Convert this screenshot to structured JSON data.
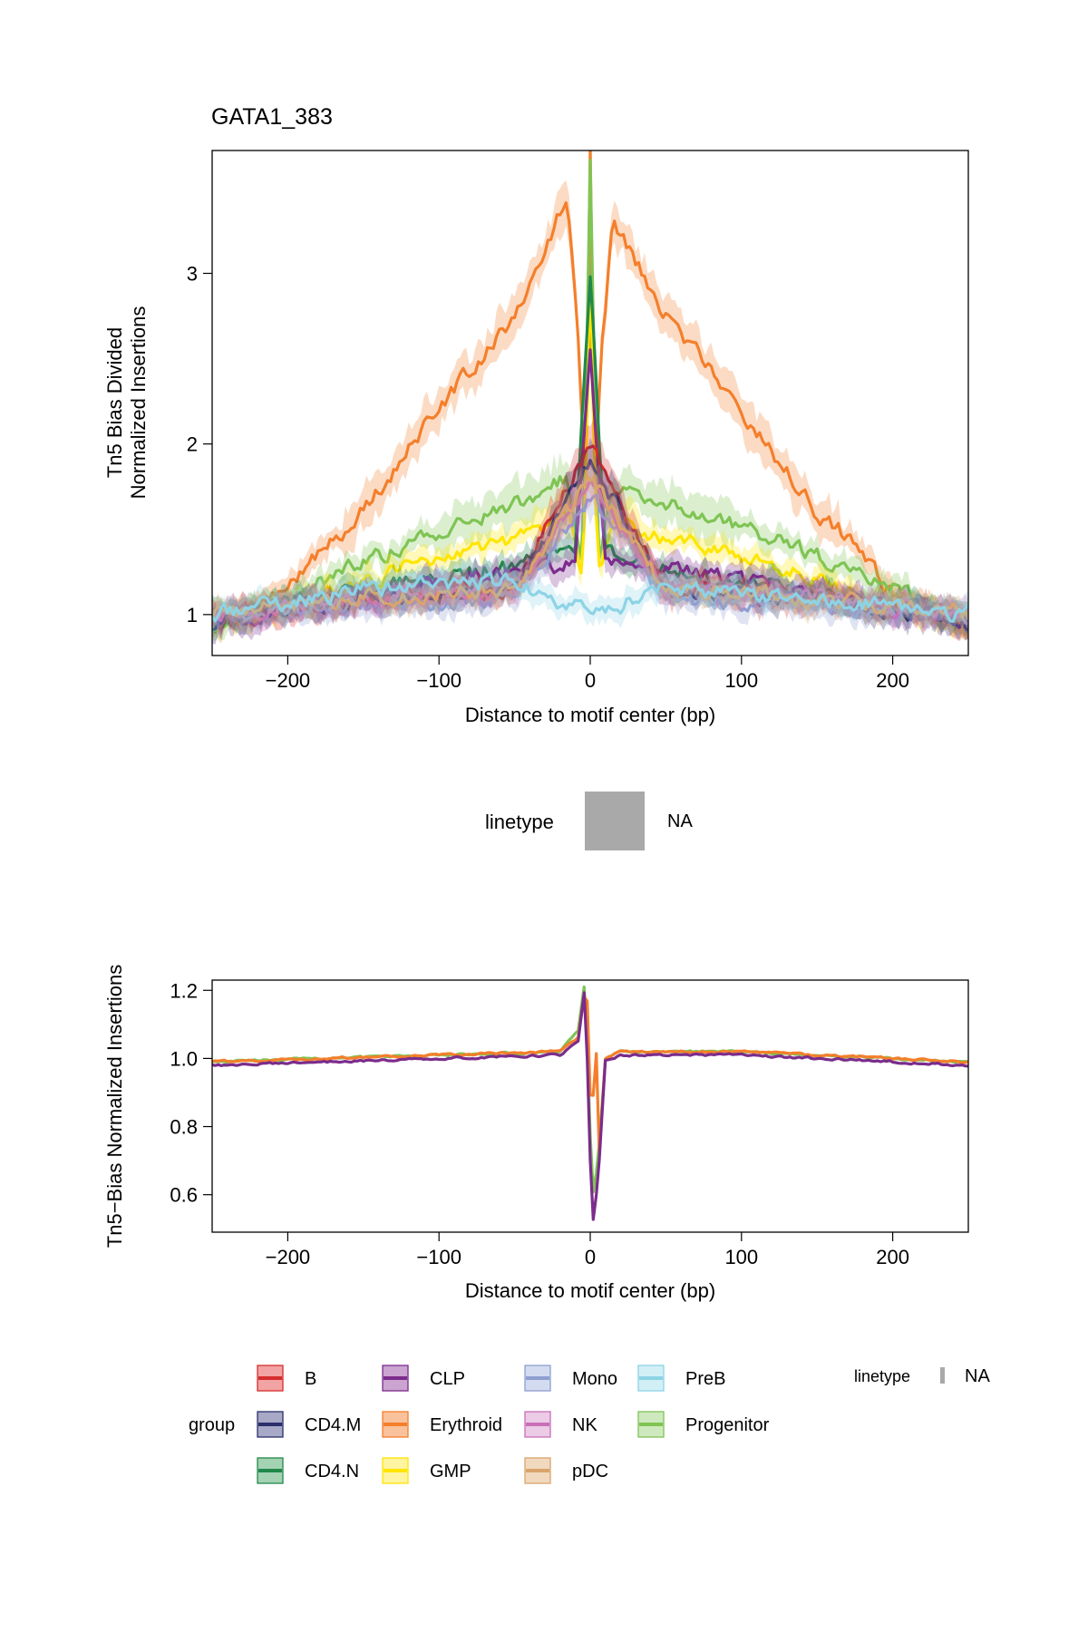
{
  "chart_data": [
    {
      "type": "line",
      "title": "GATA1_383",
      "xlabel": "Distance to motif center (bp)",
      "ylabel_line1": "Tn5 Bias Divided",
      "ylabel_line2": "Normalized Insertions",
      "xlim": [
        -250,
        250
      ],
      "ylim": [
        0.76,
        3.72
      ],
      "x_ticks": [
        -200,
        -100,
        0,
        100,
        200
      ],
      "x_tick_labels": [
        "−200",
        "−100",
        "0",
        "100",
        "200"
      ],
      "y_ticks": [
        1,
        2,
        3
      ],
      "y_tick_labels": [
        "1",
        "2",
        "3"
      ],
      "grid": false,
      "shaded_ribbons": true,
      "series": [
        {
          "name": "Erythroid",
          "color": "#f47f2b",
          "x": [
            -250,
            -200,
            -150,
            -100,
            -50,
            -15,
            -8,
            -3,
            0,
            3,
            8,
            15,
            50,
            100,
            150,
            165,
            200,
            250
          ],
          "y": [
            0.95,
            1.15,
            1.62,
            2.2,
            2.75,
            3.45,
            2.6,
            1.7,
            3.7,
            1.7,
            2.6,
            3.3,
            2.75,
            2.2,
            1.6,
            1.5,
            1.1,
            0.95
          ]
        },
        {
          "name": "Progenitor",
          "color": "#7fc454",
          "x": [
            -250,
            -200,
            -150,
            -100,
            -50,
            -15,
            -5,
            0,
            5,
            15,
            50,
            100,
            150,
            200,
            250
          ],
          "y": [
            0.9,
            1.1,
            1.3,
            1.5,
            1.65,
            1.8,
            1.3,
            3.7,
            1.3,
            1.75,
            1.65,
            1.5,
            1.35,
            1.15,
            0.95
          ]
        },
        {
          "name": "GMP",
          "color": "#ffe500",
          "x": [
            -250,
            -200,
            -150,
            -100,
            -50,
            -15,
            -5,
            0,
            5,
            15,
            50,
            100,
            150,
            200,
            250
          ],
          "y": [
            0.95,
            1.05,
            1.2,
            1.35,
            1.45,
            1.6,
            1.2,
            2.8,
            1.2,
            1.55,
            1.45,
            1.35,
            1.2,
            1.05,
            0.95
          ]
        },
        {
          "name": "CD4.N",
          "color": "#22884a",
          "x": [
            -250,
            -150,
            -50,
            -10,
            0,
            10,
            50,
            150,
            250
          ],
          "y": [
            1.0,
            1.15,
            1.3,
            1.4,
            3.0,
            1.35,
            1.25,
            1.12,
            1.0
          ]
        },
        {
          "name": "CLP",
          "color": "#7b2c8c",
          "x": [
            -250,
            -150,
            -50,
            -10,
            0,
            10,
            50,
            150,
            250
          ],
          "y": [
            0.95,
            1.1,
            1.25,
            1.3,
            2.5,
            1.3,
            1.3,
            1.1,
            0.95
          ]
        },
        {
          "name": "B",
          "color": "#d62d2d",
          "x": [
            -250,
            -150,
            -50,
            0,
            50,
            150,
            250
          ],
          "y": [
            1.0,
            1.1,
            1.15,
            2.0,
            1.15,
            1.1,
            1.0
          ]
        },
        {
          "name": "CD4.M",
          "color": "#2b2f6b",
          "x": [
            -250,
            -150,
            -50,
            0,
            50,
            150,
            250
          ],
          "y": [
            0.95,
            1.1,
            1.15,
            1.9,
            1.15,
            1.1,
            0.95
          ]
        },
        {
          "name": "Mono",
          "color": "#8e9fd0",
          "x": [
            -250,
            -150,
            -50,
            0,
            50,
            150,
            250
          ],
          "y": [
            1.0,
            1.05,
            1.1,
            1.7,
            1.1,
            1.05,
            1.0
          ]
        },
        {
          "name": "NK",
          "color": "#c96fb8",
          "x": [
            -250,
            -150,
            -50,
            0,
            50,
            150,
            250
          ],
          "y": [
            1.0,
            1.1,
            1.15,
            1.8,
            1.15,
            1.1,
            1.0
          ]
        },
        {
          "name": "pDC",
          "color": "#d9a46b",
          "x": [
            -250,
            -150,
            -50,
            0,
            50,
            150,
            250
          ],
          "y": [
            1.0,
            1.1,
            1.15,
            1.8,
            1.15,
            1.1,
            1.0
          ]
        },
        {
          "name": "PreB",
          "color": "#8dd3e6",
          "x": [
            -250,
            -150,
            -50,
            0,
            50,
            150,
            250
          ],
          "y": [
            1.0,
            1.15,
            1.2,
            1.0,
            1.15,
            1.1,
            1.0
          ]
        }
      ]
    },
    {
      "type": "line",
      "xlabel": "Distance to motif center (bp)",
      "ylabel": "Tn5−Bias Normalized Insertions",
      "xlim": [
        -250,
        250
      ],
      "ylim": [
        0.49,
        1.23
      ],
      "x_ticks": [
        -200,
        -100,
        0,
        100,
        200
      ],
      "x_tick_labels": [
        "−200",
        "−100",
        "0",
        "100",
        "200"
      ],
      "y_ticks": [
        0.6,
        0.8,
        1.0,
        1.2
      ],
      "y_tick_labels": [
        "0.6",
        "0.8",
        "1.0",
        "1.2"
      ],
      "grid": false,
      "series": [
        {
          "name": "Progenitor",
          "color": "#7fc454",
          "x": [
            -250,
            -100,
            -20,
            -8,
            -4,
            -1,
            1,
            3,
            6,
            10,
            20,
            100,
            250
          ],
          "y": [
            0.99,
            1.01,
            1.02,
            1.08,
            1.21,
            0.95,
            0.6,
            0.62,
            0.75,
            1.0,
            1.02,
            1.02,
            0.99
          ]
        },
        {
          "name": "Erythroid",
          "color": "#f47f2b",
          "x": [
            -250,
            -100,
            -20,
            -8,
            -4,
            -1,
            1,
            3,
            6,
            10,
            20,
            100,
            250
          ],
          "y": [
            0.99,
            1.01,
            1.02,
            1.06,
            1.18,
            1.16,
            0.62,
            1.16,
            0.72,
            1.0,
            1.02,
            1.02,
            0.99
          ]
        },
        {
          "name": "CLP",
          "color": "#7b2c8c",
          "x": [
            -250,
            -100,
            -20,
            -8,
            -4,
            -1,
            1,
            3,
            6,
            10,
            20,
            100,
            250
          ],
          "y": [
            0.98,
            1.0,
            1.01,
            1.05,
            1.19,
            0.9,
            0.5,
            0.55,
            0.7,
            0.99,
            1.01,
            1.01,
            0.98
          ]
        }
      ]
    }
  ],
  "legend_top": {
    "title": "linetype",
    "label": "NA"
  },
  "legend_bottom": {
    "group_title": "group",
    "linetype_title": "linetype",
    "linetype_label": "NA",
    "groups": [
      {
        "name": "B",
        "fill": "#f2a3a3",
        "line": "#d62d2d"
      },
      {
        "name": "CD4.M",
        "fill": "#a7a9c6",
        "line": "#2b2f6b"
      },
      {
        "name": "CD4.N",
        "fill": "#a4d3b3",
        "line": "#22884a"
      },
      {
        "name": "CLP",
        "fill": "#cba4d2",
        "line": "#7b2c8c"
      },
      {
        "name": "Erythroid",
        "fill": "#f9c29c",
        "line": "#f47f2b"
      },
      {
        "name": "GMP",
        "fill": "#fff4a0",
        "line": "#ffe500"
      },
      {
        "name": "Mono",
        "fill": "#d3dbf0",
        "line": "#8e9fd0"
      },
      {
        "name": "NK",
        "fill": "#ebcbe5",
        "line": "#c96fb8"
      },
      {
        "name": "pDC",
        "fill": "#f1d9bf",
        "line": "#d9a46b"
      },
      {
        "name": "PreB",
        "fill": "#d3eff6",
        "line": "#8dd3e6"
      },
      {
        "name": "Progenitor",
        "fill": "#cfe9bf",
        "line": "#7fc454"
      }
    ]
  }
}
